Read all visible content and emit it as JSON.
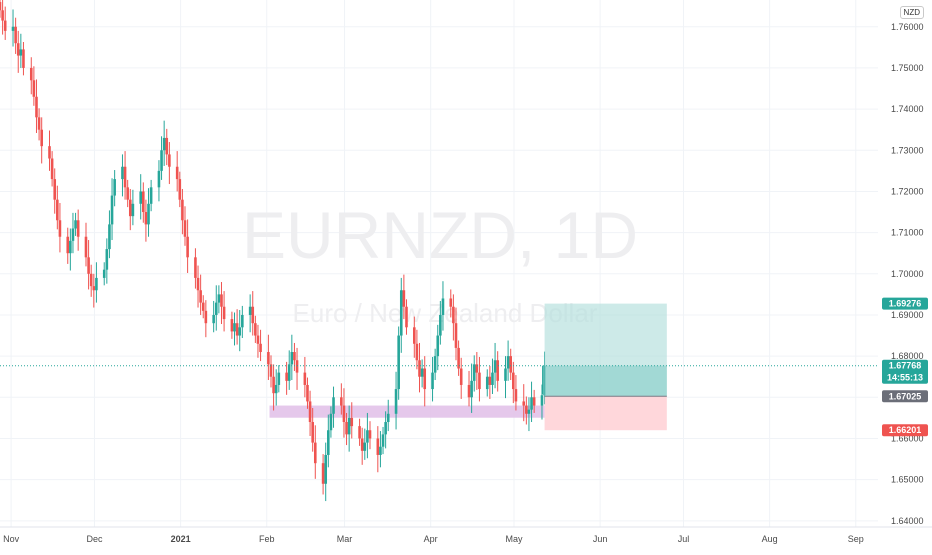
{
  "watermark": {
    "symbol": "EURNZD, 1D",
    "name": "Euro / New Zealand Dollar"
  },
  "currency_badge": "NZD",
  "colors": {
    "up": "#26a69a",
    "down": "#ef5350",
    "profit_zone": "#b2dfdb",
    "loss_zone": "#ffcdd2",
    "support_zone": "#e1bee7",
    "grid": "#f0f3f7"
  },
  "chart_data": {
    "type": "candlestick",
    "symbol": "EURNZD",
    "timeframe": "1D",
    "ylim": [
      1.6385,
      1.7665
    ],
    "y_ticks": [
      "1.76000",
      "1.75000",
      "1.74000",
      "1.73000",
      "1.72000",
      "1.71000",
      "1.70000",
      "1.69000",
      "1.68000",
      "1.67000",
      "1.66000",
      "1.65000",
      "1.64000"
    ],
    "x_ticks": [
      {
        "label": "Nov",
        "date": "2020-11-01"
      },
      {
        "label": "Dec",
        "date": "2020-12-01"
      },
      {
        "label": "2021",
        "date": "2021-01-01",
        "bold": true
      },
      {
        "label": "Feb",
        "date": "2021-02-01"
      },
      {
        "label": "Mar",
        "date": "2021-03-01"
      },
      {
        "label": "Apr",
        "date": "2021-04-01"
      },
      {
        "label": "May",
        "date": "2021-05-01"
      },
      {
        "label": "Jun",
        "date": "2021-06-01"
      },
      {
        "label": "Jul",
        "date": "2021-07-01"
      },
      {
        "label": "Aug",
        "date": "2021-08-01"
      },
      {
        "label": "Sep",
        "date": "2021-09-01"
      }
    ],
    "x_range": [
      "2020-10-28",
      "2021-09-09"
    ],
    "candles_close": [
      1.764,
      1.7615,
      1.759,
      1.76,
      1.756,
      1.753,
      1.7545,
      1.75,
      1.747,
      1.743,
      1.738,
      1.735,
      1.731,
      1.728,
      1.723,
      1.718,
      1.713,
      1.709,
      1.705,
      1.708,
      1.711,
      1.713,
      1.709,
      1.704,
      1.7,
      1.697,
      1.696,
      1.699,
      1.701,
      1.706,
      1.712,
      1.719,
      1.723,
      1.726,
      1.721,
      1.718,
      1.714,
      1.717,
      1.72,
      1.715,
      1.712,
      1.717,
      1.721,
      1.725,
      1.73,
      1.733,
      1.729,
      1.726,
      1.723,
      1.718,
      1.713,
      1.709,
      1.704,
      1.699,
      1.696,
      1.693,
      1.691,
      1.688,
      1.69,
      1.693,
      1.695,
      1.692,
      1.689,
      1.686,
      1.688,
      1.685,
      1.687,
      1.69,
      1.692,
      1.688,
      1.685,
      1.683,
      1.681,
      1.678,
      1.675,
      1.671,
      1.673,
      1.676,
      1.674,
      1.678,
      1.681,
      1.679,
      1.676,
      1.673,
      1.669,
      1.664,
      1.659,
      1.654,
      1.649,
      1.656,
      1.662,
      1.666,
      1.67,
      1.668,
      1.664,
      1.661,
      1.665,
      1.663,
      1.66,
      1.657,
      1.659,
      1.662,
      1.66,
      1.656,
      1.658,
      1.661,
      1.664,
      1.666,
      1.672,
      1.685,
      1.696,
      1.692,
      1.687,
      1.683,
      1.679,
      1.675,
      1.677,
      1.672,
      1.676,
      1.68,
      1.685,
      1.69,
      1.694,
      1.692,
      1.688,
      1.682,
      1.677,
      1.673,
      1.67,
      1.674,
      1.678,
      1.676,
      1.672,
      1.675,
      1.673,
      1.676,
      1.679,
      1.674,
      1.677,
      1.68,
      1.676,
      1.672,
      1.669,
      1.668,
      1.666,
      1.667,
      1.67,
      1.668,
      1.6705,
      1.6777
    ],
    "support_zone": {
      "from": 1.668,
      "to": 1.6665,
      "start": "2021-02-02",
      "end": "2021-05-12"
    },
    "position": {
      "type": "long",
      "entry": 1.67025,
      "target": 1.69276,
      "stop": 1.66201,
      "start": "2021-05-12",
      "end": "2021-06-25"
    },
    "current_price": 1.67768,
    "countdown": "14:55:13",
    "price_tags": {
      "target": "1.69276",
      "current": "1.67768",
      "entry": "1.67025",
      "stop": "1.66201"
    }
  }
}
